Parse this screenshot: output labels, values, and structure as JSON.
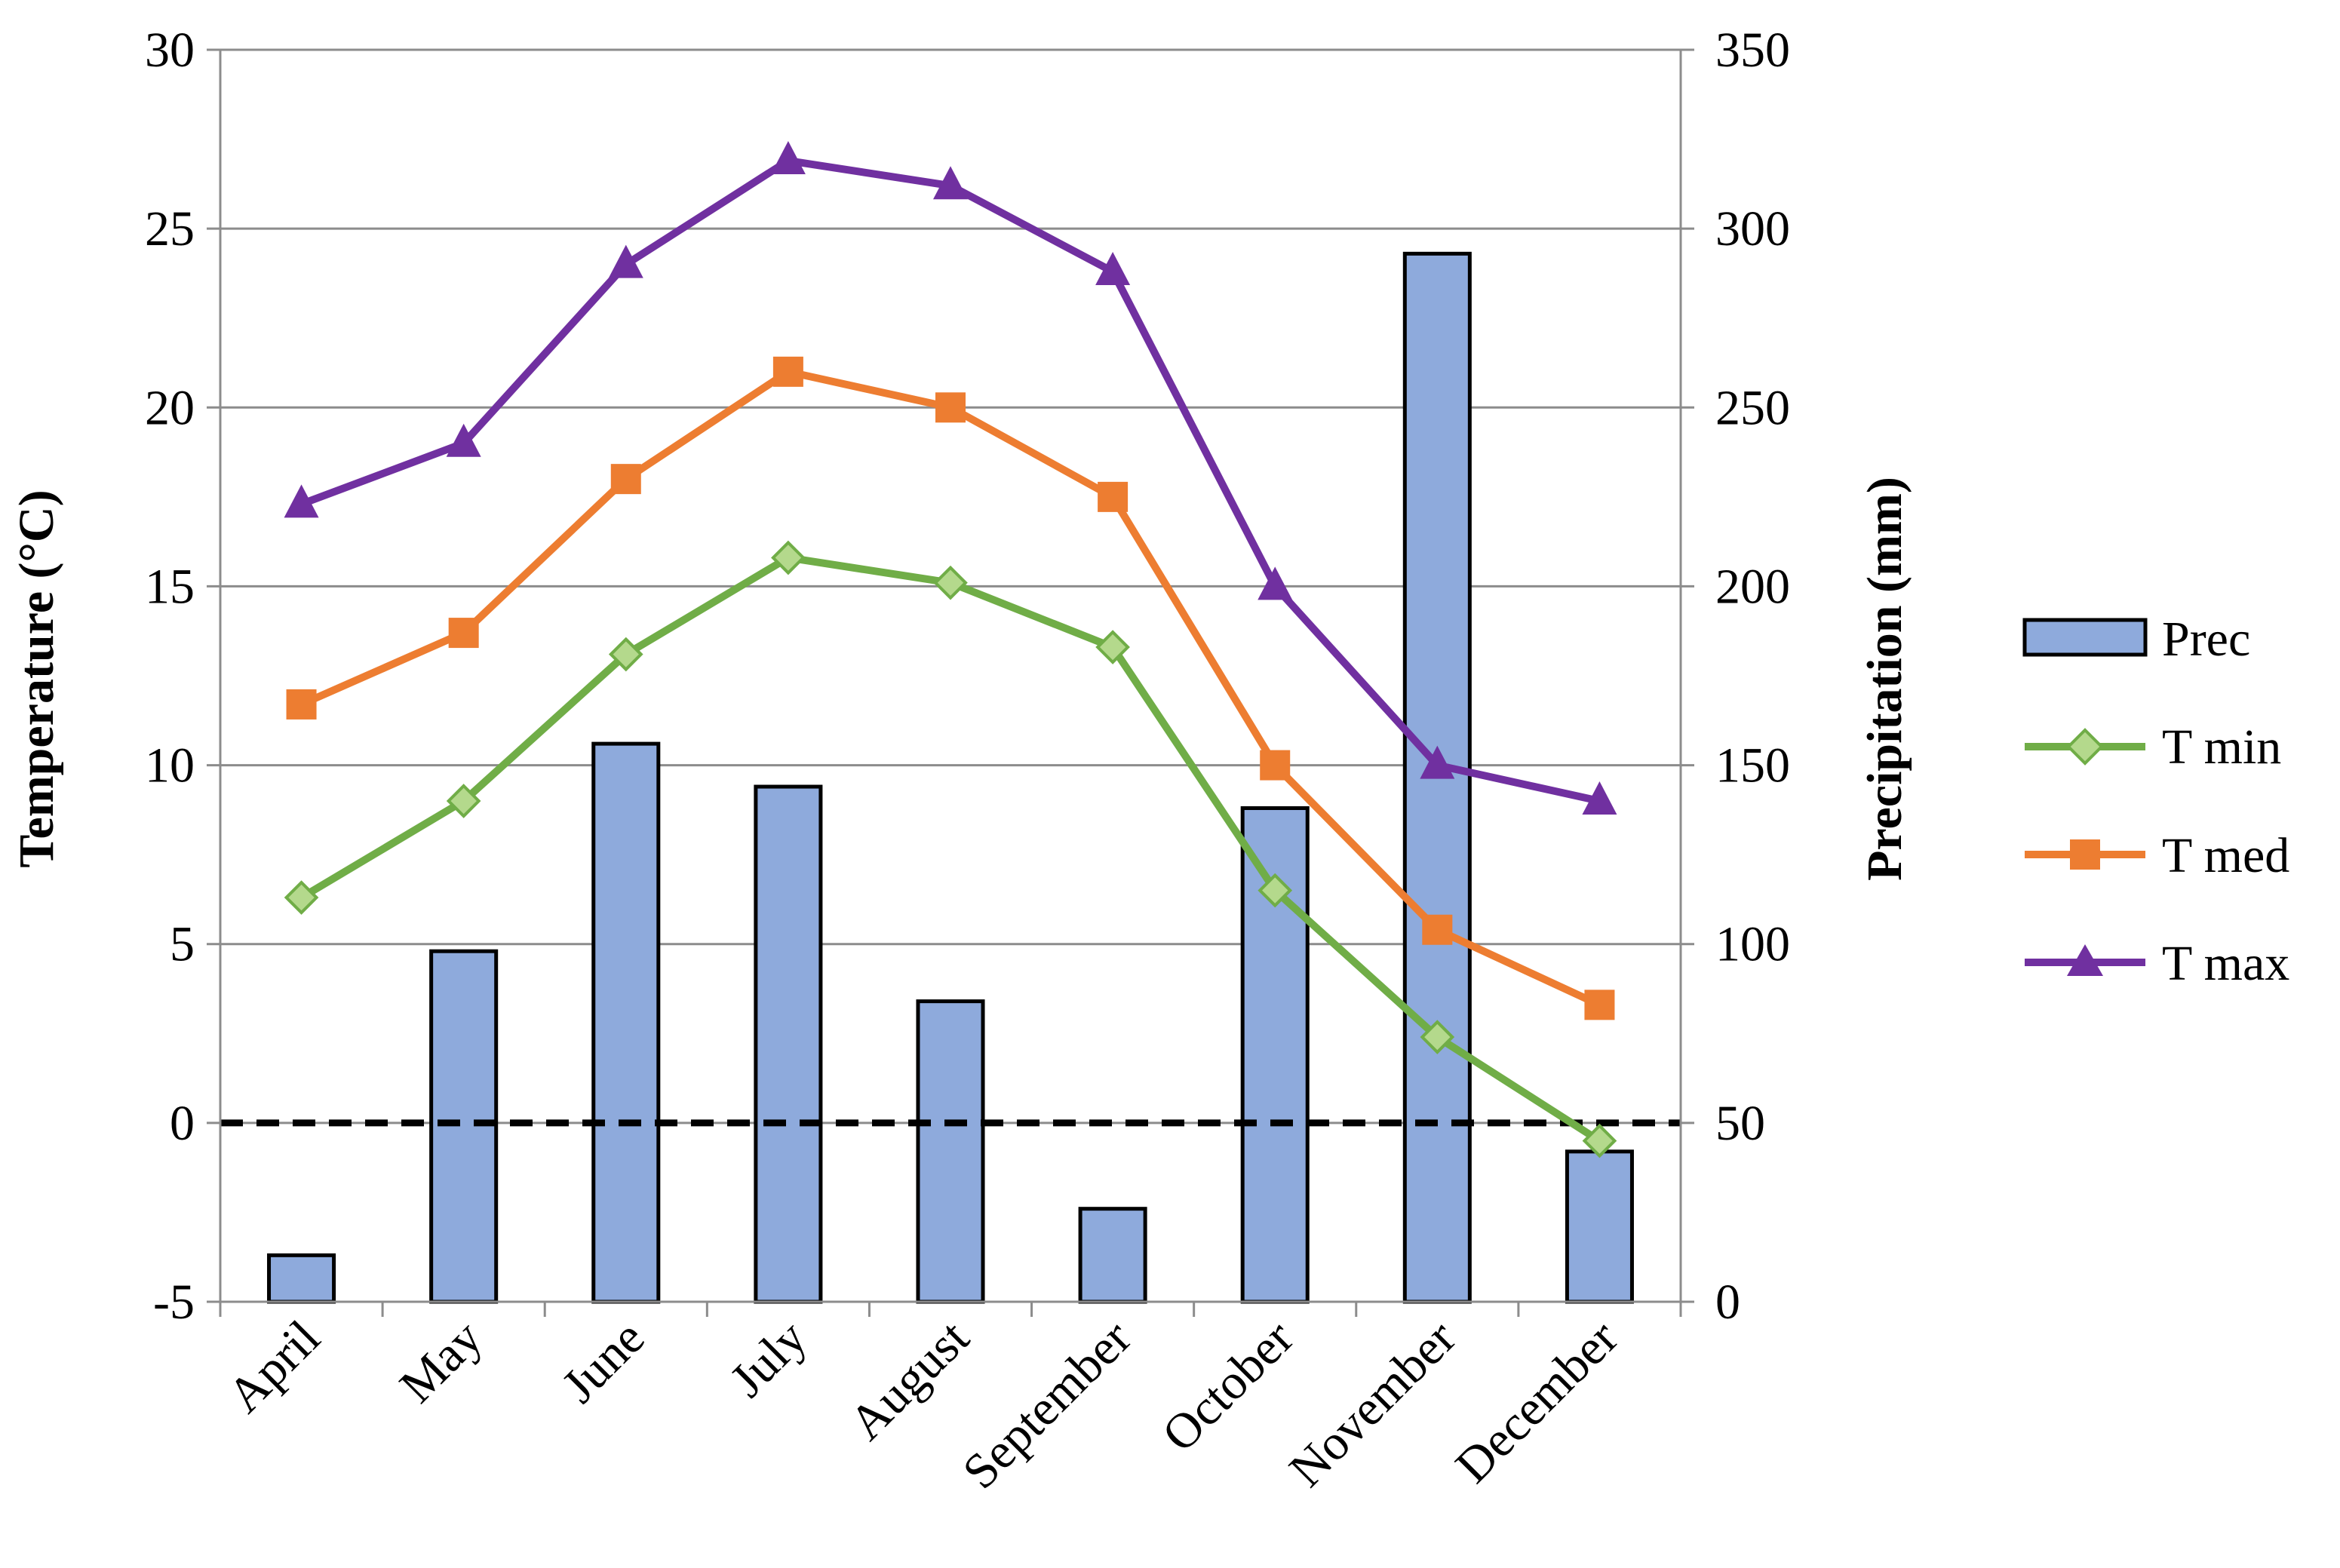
{
  "chart_data": {
    "type": "bar+line",
    "title": "",
    "categories": [
      "April",
      "May",
      "June",
      "July",
      "August",
      "September",
      "October",
      "November",
      "December"
    ],
    "bar_series": {
      "name": "Prec",
      "axis": "right",
      "values": [
        13,
        98,
        156,
        144,
        84,
        26,
        138,
        293,
        42
      ],
      "color": "#8eaadc",
      "edge_color": "#000000"
    },
    "line_series": [
      {
        "name": "T min",
        "axis": "left",
        "values": [
          6.3,
          9.0,
          13.1,
          15.8,
          15.1,
          13.3,
          6.5,
          2.4,
          -0.5
        ],
        "color": "#70ad47",
        "marker": "diamond",
        "marker_fill": "#b4d98c"
      },
      {
        "name": "T med",
        "axis": "left",
        "values": [
          11.7,
          13.7,
          18.0,
          21.0,
          20.0,
          17.5,
          10.0,
          5.4,
          3.3
        ],
        "color": "#ed7d31",
        "marker": "square",
        "marker_fill": "#ed7d31"
      },
      {
        "name": "T max",
        "axis": "left",
        "values": [
          17.3,
          19.0,
          24.0,
          26.9,
          26.2,
          23.8,
          15.0,
          10.0,
          9.0
        ],
        "color": "#7030a0",
        "marker": "triangle",
        "marker_fill": "#7030a0"
      }
    ],
    "reference_line": {
      "value": 0,
      "axis": "left",
      "style": "dashed",
      "color": "#000000"
    },
    "y_left": {
      "label": "Temperature (°C)",
      "range": [
        -5,
        30
      ],
      "ticks": [
        -5,
        0,
        5,
        10,
        15,
        20,
        25,
        30
      ]
    },
    "y_right": {
      "label": "Precipitation (mm)",
      "range": [
        0,
        350
      ],
      "ticks": [
        0,
        50,
        100,
        150,
        200,
        250,
        300,
        350
      ]
    },
    "xlabel": "",
    "grid": true,
    "legend": {
      "position": "right",
      "entries": [
        "Prec",
        "T min",
        "T med",
        "T max"
      ]
    }
  }
}
